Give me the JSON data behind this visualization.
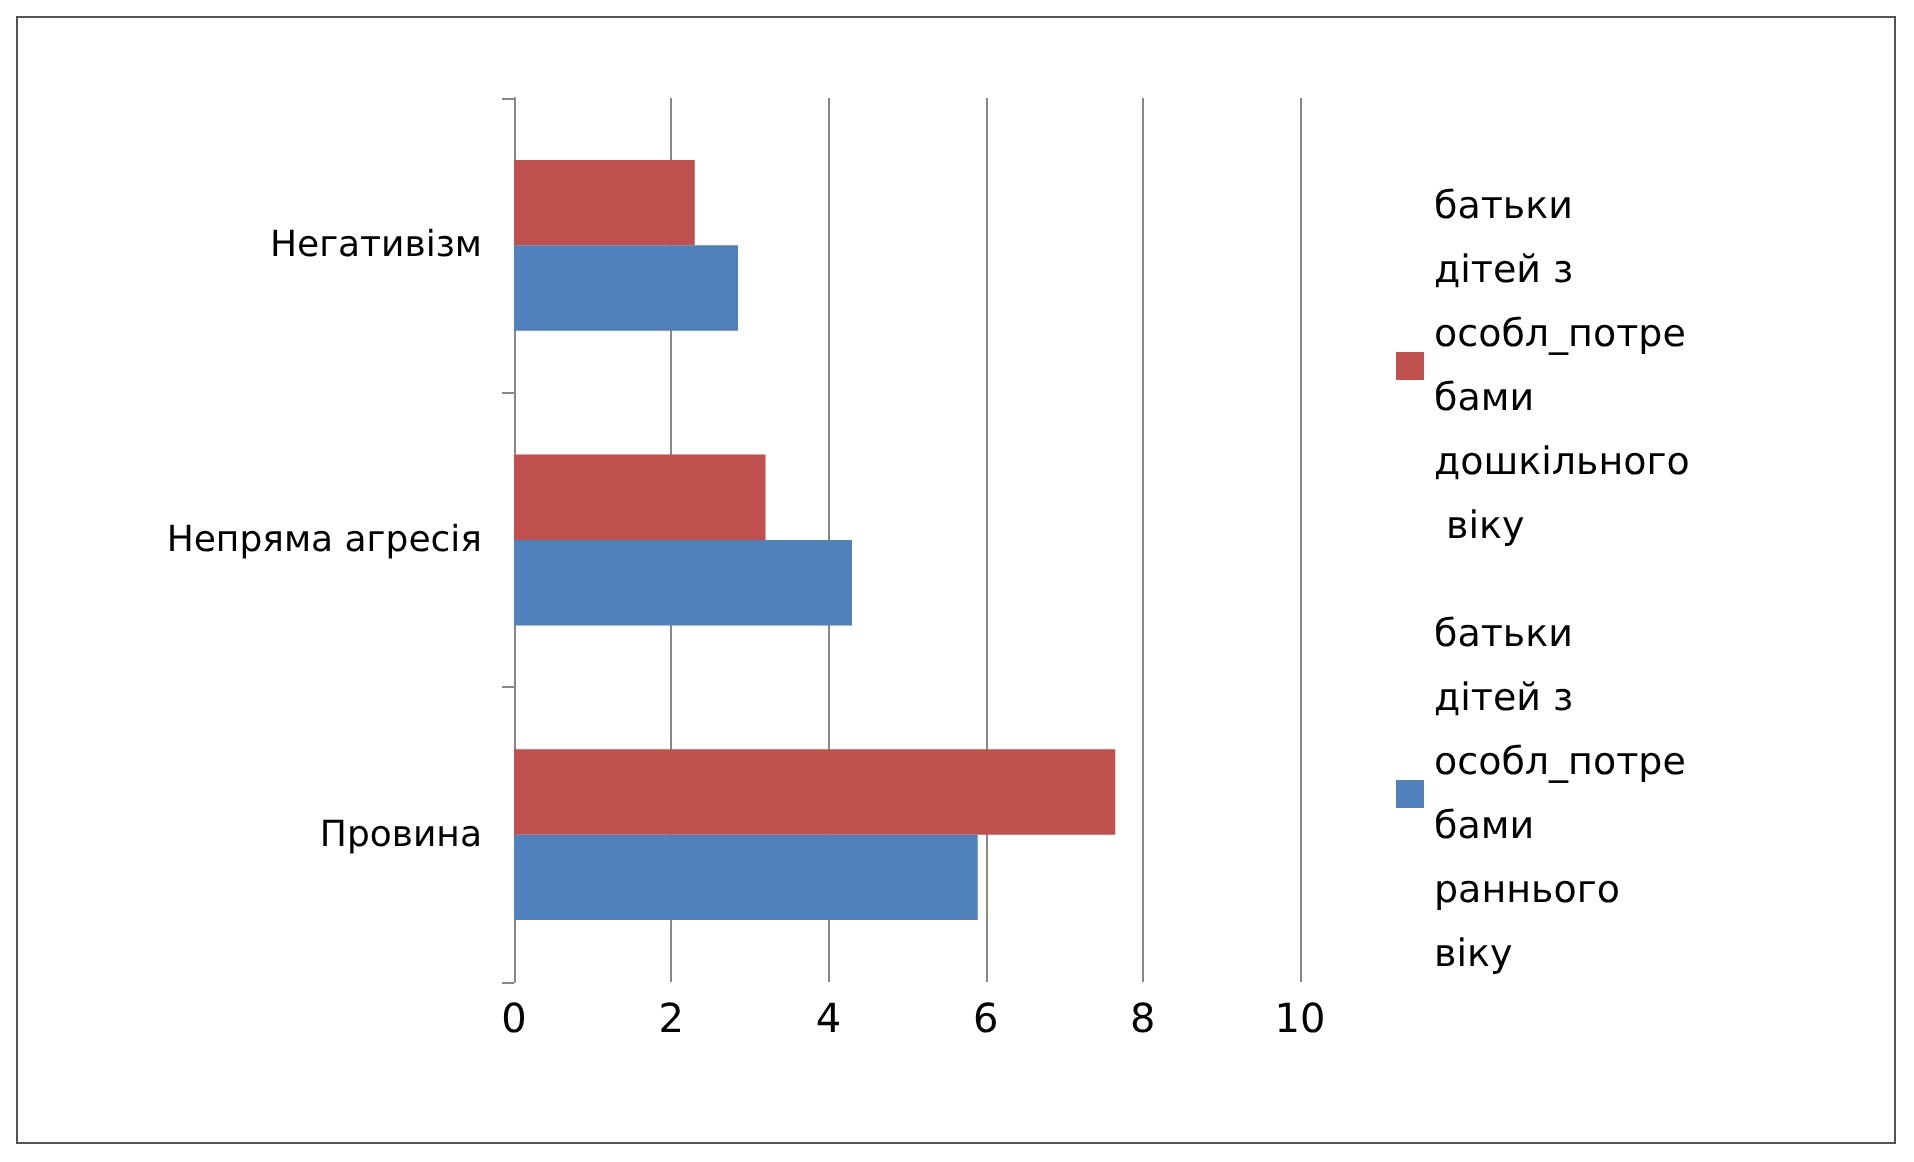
{
  "chart_data": {
    "type": "bar",
    "orientation": "horizontal",
    "categories": [
      "Негативізм",
      "Непряма агресія",
      "Провина"
    ],
    "series": [
      {
        "name": "батьки дітей з особл_потребами дошкільного віку",
        "color": "#c0504d",
        "values": [
          2.3,
          3.2,
          7.65
        ]
      },
      {
        "name": "батьки дітей з особл_потребами раннього віку",
        "color": "#4f81bd",
        "values": [
          2.85,
          4.3,
          5.9
        ]
      }
    ],
    "xlim": [
      0,
      10
    ],
    "xticks": [
      0,
      2,
      4,
      6,
      8,
      10
    ],
    "grid": "x",
    "legend": "right"
  }
}
